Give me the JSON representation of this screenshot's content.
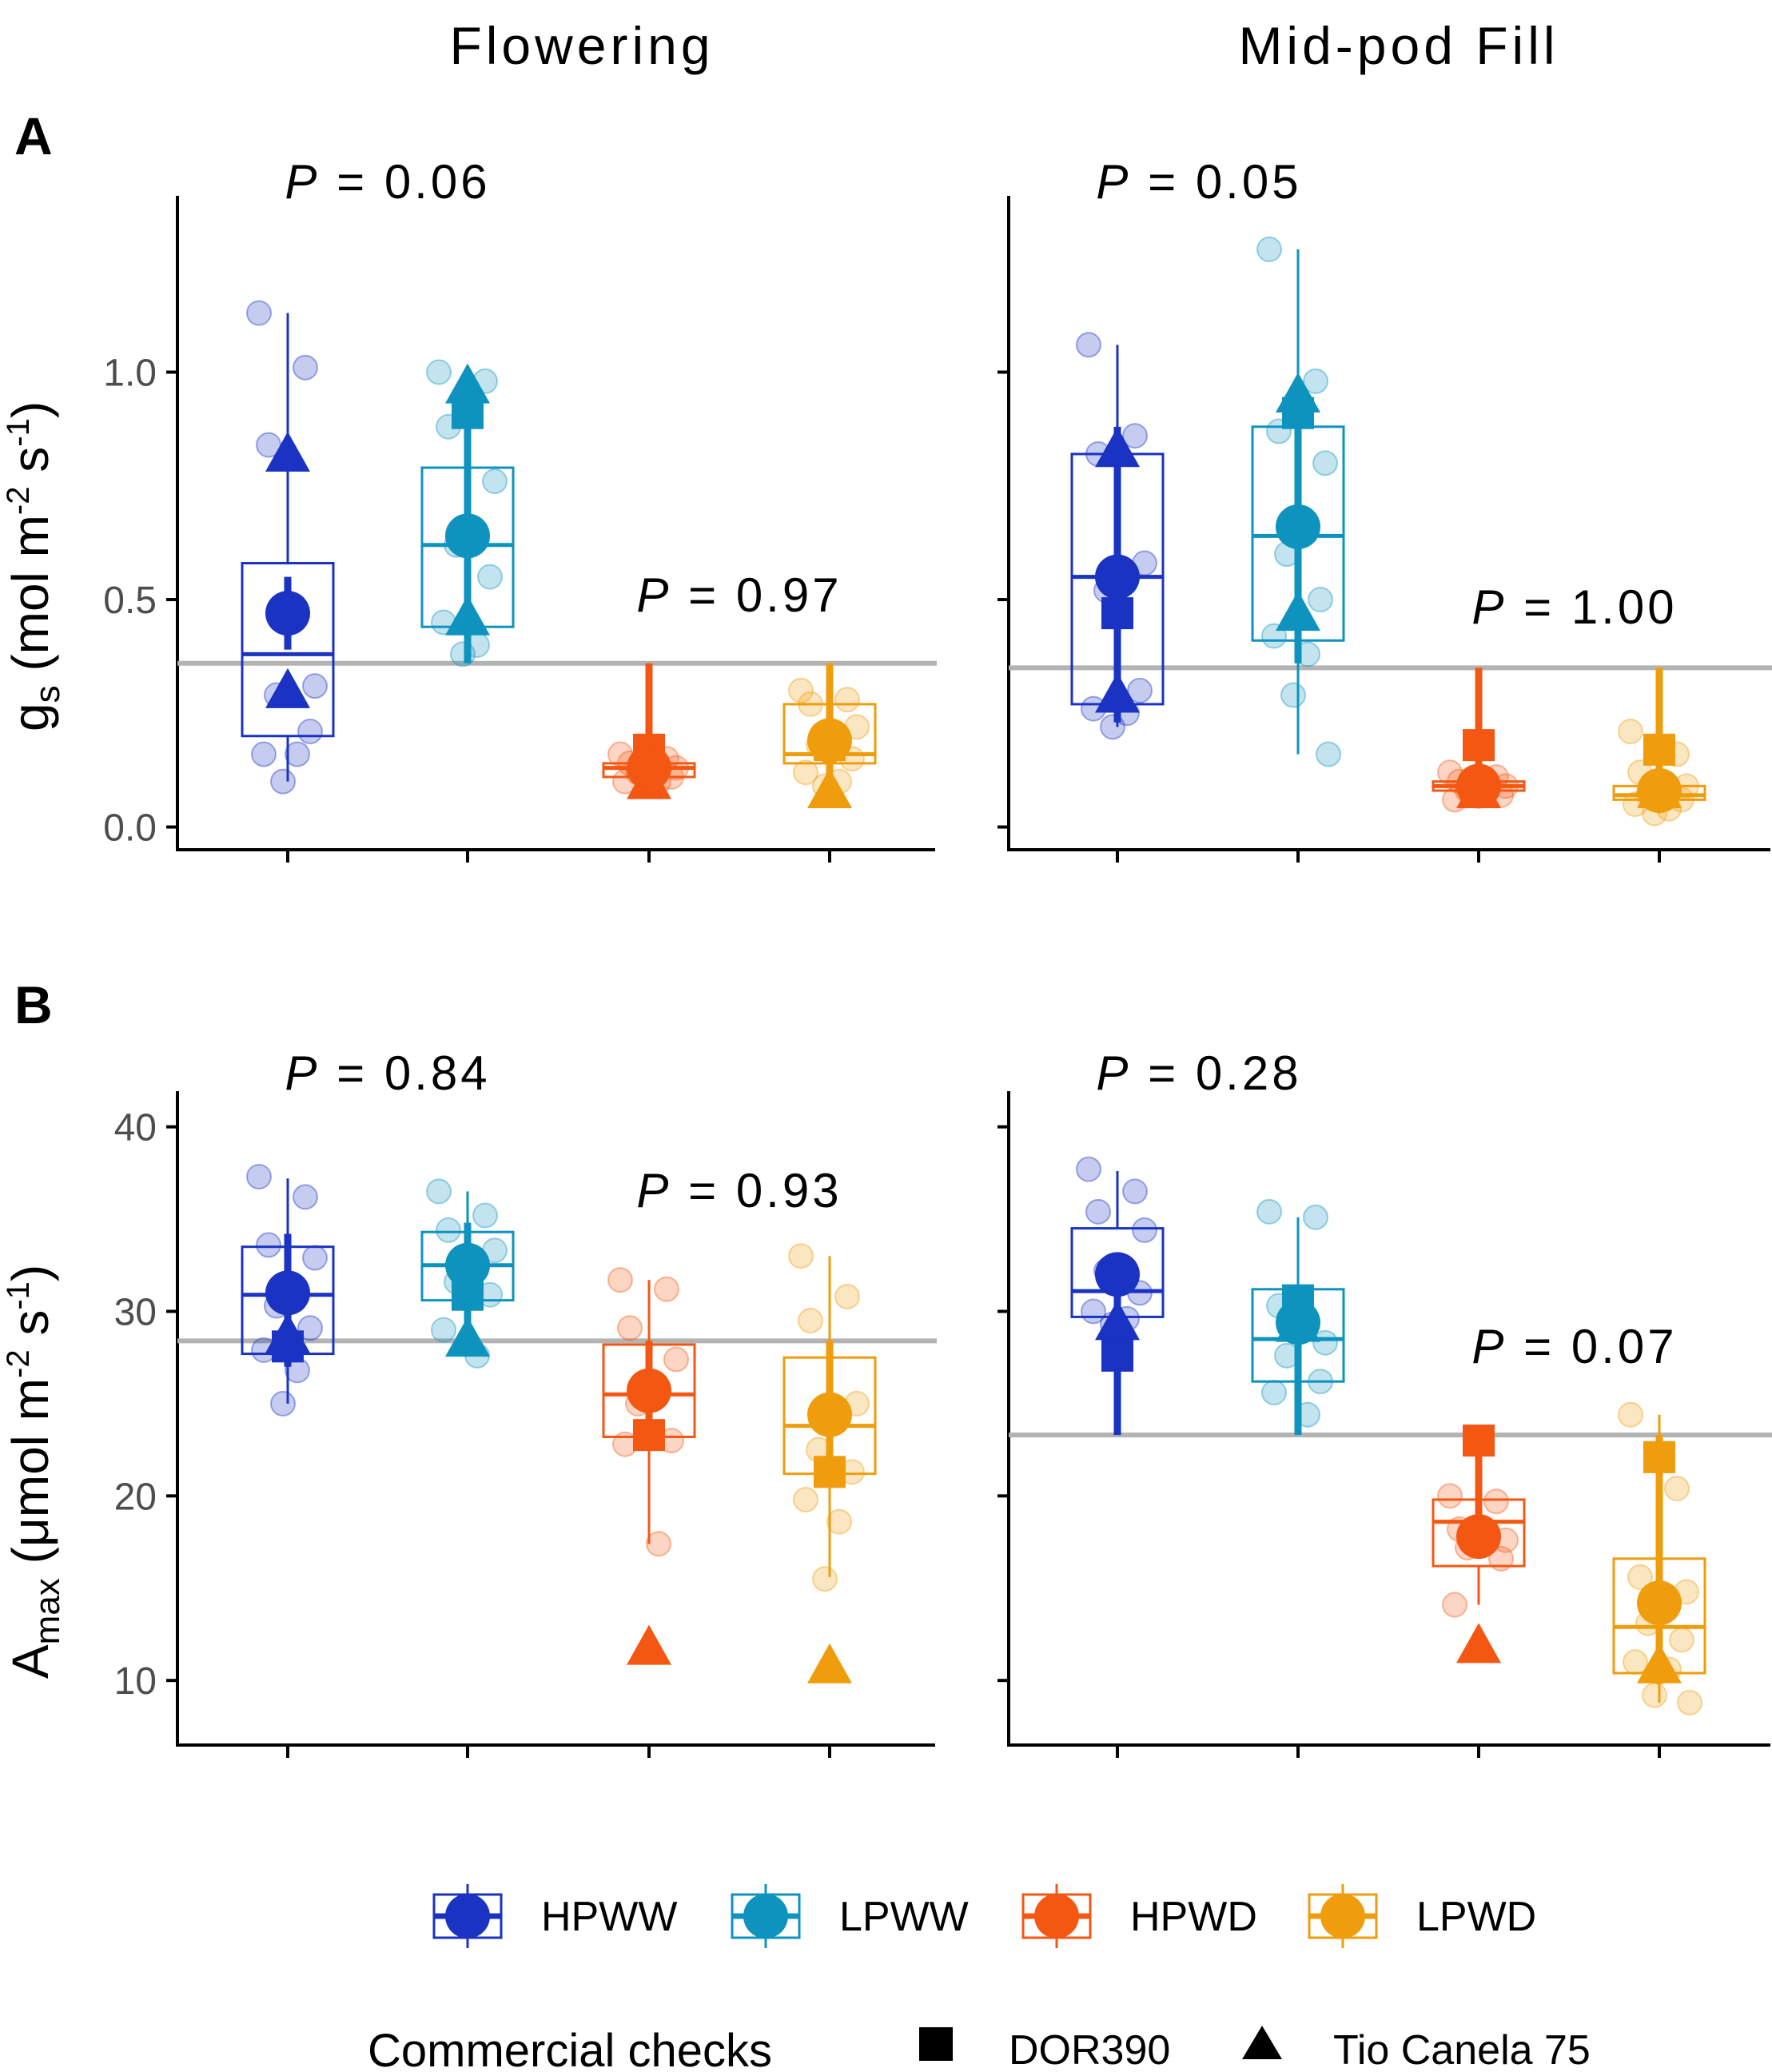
{
  "colors": {
    "HPWW": "#1a33c2",
    "LPWW": "#0e93bf",
    "HPWD": "#f45712",
    "LPWD": "#ef9d0c",
    "refline": "#b3b3b3",
    "axis": "#000000"
  },
  "column_titles": [
    "Flowering",
    "Mid-pod Fill"
  ],
  "chart_data": [
    {
      "type": "box",
      "panel": "A",
      "stage": "Flowering",
      "ylabel": "g_s (mol m^-2 s^-1)",
      "ylabel_main": "g",
      "ylabel_sub": "s",
      "ylabel_rest": " (mol m",
      "ylabel_exp1": "-2",
      "ylabel_mid": " s",
      "ylabel_exp2": "-1",
      "ylabel_end": ")",
      "ylim": [
        -0.05,
        1.37
      ],
      "yticks": [
        0.0,
        0.5,
        1.0
      ],
      "ytick_labels": [
        "0.0",
        "0.5",
        "1.0"
      ],
      "reference_line": 0.36,
      "pvalues": [
        {
          "prefix": "P",
          "text": " = 0.06",
          "group": "well-watered"
        },
        {
          "prefix": "P",
          "text": " = 0.97",
          "group": "water-deficit"
        }
      ],
      "groups": [
        {
          "treatment": "HPWW",
          "box": {
            "q1": 0.2,
            "median": 0.38,
            "q3": 0.58,
            "whisker_low": 0.1,
            "whisker_high": 1.13
          },
          "mean": 0.47,
          "mean_err": [
            0.39,
            0.55
          ],
          "points": [
            1.13,
            1.01,
            0.84,
            0.31,
            0.29,
            0.21,
            0.16,
            0.16,
            0.1
          ],
          "dor390": 0.47,
          "tio_canela": 0.82,
          "tio_canela_2": 0.3
        },
        {
          "treatment": "LPWW",
          "box": {
            "q1": 0.44,
            "median": 0.62,
            "q3": 0.79,
            "whisker_low": 0.38,
            "whisker_high": 1.0
          },
          "mean": 0.64,
          "mean_err": [
            0.36,
            0.92
          ],
          "points": [
            1.0,
            0.98,
            0.88,
            0.76,
            0.62,
            0.55,
            0.45,
            0.4,
            0.38
          ],
          "dor390": 0.91,
          "tio_canela": 0.97,
          "tio_canela_2": 0.46
        },
        {
          "treatment": "HPWD",
          "box": {
            "q1": 0.11,
            "median": 0.13,
            "q3": 0.14,
            "whisker_low": 0.09,
            "whisker_high": 0.16
          },
          "mean": 0.13,
          "mean_err": [
            0.09,
            0.36
          ],
          "points": [
            0.16,
            0.15,
            0.14,
            0.13,
            0.12,
            0.11,
            0.1,
            0.1
          ],
          "dor390": 0.17,
          "tio_canela": 0.1
        },
        {
          "treatment": "LPWD",
          "box": {
            "q1": 0.14,
            "median": 0.16,
            "q3": 0.27,
            "whisker_low": 0.09,
            "whisker_high": 0.3
          },
          "mean": 0.19,
          "mean_err": [
            0.09,
            0.36
          ],
          "points": [
            0.3,
            0.28,
            0.27,
            0.22,
            0.18,
            0.15,
            0.12,
            0.1,
            0.09
          ],
          "dor390": 0.18,
          "tio_canela": 0.08
        }
      ]
    },
    {
      "type": "box",
      "panel": "A",
      "stage": "Mid-pod Fill",
      "ylim": [
        -0.05,
        1.37
      ],
      "reference_line": 0.35,
      "pvalues": [
        {
          "prefix": "P",
          "text": " = 0.05",
          "group": "well-watered"
        },
        {
          "prefix": "P",
          "text": " = 1.00",
          "group": "water-deficit"
        }
      ],
      "groups": [
        {
          "treatment": "HPWW",
          "box": {
            "q1": 0.27,
            "median": 0.55,
            "q3": 0.82,
            "whisker_low": 0.22,
            "whisker_high": 1.06
          },
          "mean": 0.55,
          "mean_err": [
            0.23,
            0.88
          ],
          "points": [
            1.06,
            0.86,
            0.82,
            0.58,
            0.52,
            0.3,
            0.26,
            0.25,
            0.22
          ],
          "dor390": 0.47,
          "tio_canela": 0.83,
          "tio_canela_2": 0.29
        },
        {
          "treatment": "LPWW",
          "box": {
            "q1": 0.41,
            "median": 0.64,
            "q3": 0.88,
            "whisker_low": 0.16,
            "whisker_high": 1.27
          },
          "mean": 0.66,
          "mean_err": [
            0.36,
            0.96
          ],
          "points": [
            1.27,
            0.98,
            0.87,
            0.8,
            0.6,
            0.5,
            0.42,
            0.38,
            0.29,
            0.16
          ],
          "dor390": 0.91,
          "tio_canela": 0.95,
          "tio_canela_2": 0.47
        },
        {
          "treatment": "HPWD",
          "box": {
            "q1": 0.08,
            "median": 0.09,
            "q3": 0.1,
            "whisker_low": 0.06,
            "whisker_high": 0.12
          },
          "mean": 0.09,
          "mean_err": [
            0.06,
            0.35
          ],
          "points": [
            0.12,
            0.11,
            0.1,
            0.09,
            0.08,
            0.07,
            0.06
          ],
          "dor390": 0.18,
          "tio_canela": 0.08
        },
        {
          "treatment": "LPWD",
          "box": {
            "q1": 0.06,
            "median": 0.07,
            "q3": 0.09,
            "whisker_low": 0.03,
            "whisker_high": 0.21
          },
          "mean": 0.08,
          "mean_err": [
            0.05,
            0.35
          ],
          "points": [
            0.21,
            0.16,
            0.12,
            0.09,
            0.07,
            0.06,
            0.05,
            0.04,
            0.03
          ],
          "dor390": 0.17,
          "tio_canela": 0.08
        }
      ]
    },
    {
      "type": "box",
      "panel": "B",
      "stage": "Flowering",
      "ylabel": "A_max (umol m^-2 s^-1)",
      "ylabel_main": "A",
      "ylabel_sub": "max",
      "ylabel_rest": " (μmol m",
      "ylabel_exp1": "-2",
      "ylabel_mid": " s",
      "ylabel_exp2": "-1",
      "ylabel_end": ")",
      "ylim": [
        6.5,
        41.5
      ],
      "yticks": [
        10,
        20,
        30,
        40
      ],
      "ytick_labels": [
        "10",
        "20",
        "30",
        "40"
      ],
      "reference_line": 28.4,
      "pvalues": [
        {
          "prefix": "P",
          "text": " = 0.84",
          "group": "well-watered"
        },
        {
          "prefix": "P",
          "text": " = 0.93",
          "group": "water-deficit"
        }
      ],
      "groups": [
        {
          "treatment": "HPWW",
          "box": {
            "q1": 27.7,
            "median": 30.9,
            "q3": 33.5,
            "whisker_low": 25.0,
            "whisker_high": 37.2
          },
          "mean": 31.0,
          "mean_err": [
            27.0,
            34.2
          ],
          "points": [
            37.3,
            36.2,
            33.6,
            32.9,
            30.3,
            29.1,
            27.9,
            26.8,
            25.0
          ],
          "dor390": 28.1,
          "tio_canela": 28.7
        },
        {
          "treatment": "LPWW",
          "box": {
            "q1": 30.6,
            "median": 32.5,
            "q3": 34.3,
            "whisker_low": 27.6,
            "whisker_high": 36.5
          },
          "mean": 32.5,
          "mean_err": [
            28.8,
            34.8
          ],
          "points": [
            36.5,
            35.2,
            34.4,
            33.3,
            31.6,
            30.9,
            29.0,
            27.6
          ],
          "dor390": 30.9,
          "tio_canela": 28.5
        },
        {
          "treatment": "HPWD",
          "box": {
            "q1": 23.2,
            "median": 25.5,
            "q3": 28.2,
            "whisker_low": 17.4,
            "whisker_high": 31.7
          },
          "mean": 25.7,
          "mean_err": [
            23.4,
            28.4
          ],
          "points": [
            31.7,
            31.2,
            29.1,
            27.4,
            25.0,
            23.0,
            22.8,
            17.4
          ],
          "dor390": 23.3,
          "tio_canela": 11.8
        },
        {
          "treatment": "LPWD",
          "box": {
            "q1": 21.2,
            "median": 23.8,
            "q3": 27.5,
            "whisker_low": 15.6,
            "whisker_high": 33.0
          },
          "mean": 24.4,
          "mean_err": [
            21.5,
            28.4
          ],
          "points": [
            33.0,
            30.8,
            29.5,
            25.0,
            22.5,
            21.3,
            19.8,
            18.6,
            15.5
          ],
          "dor390": 21.3,
          "tio_canela": 10.8
        }
      ]
    },
    {
      "type": "box",
      "panel": "B",
      "stage": "Mid-pod Fill",
      "ylim": [
        6.5,
        41.5
      ],
      "reference_line": 23.3,
      "pvalues": [
        {
          "prefix": "P",
          "text": " = 0.28",
          "group": "well-watered"
        },
        {
          "prefix": "P",
          "text": " = 0.07",
          "group": "water-deficit"
        }
      ],
      "groups": [
        {
          "treatment": "HPWW",
          "box": {
            "q1": 29.7,
            "median": 31.1,
            "q3": 34.5,
            "whisker_low": 28.5,
            "whisker_high": 37.6
          },
          "mean": 32.0,
          "mean_err": [
            23.3,
            32.0
          ],
          "points": [
            37.7,
            36.5,
            35.4,
            34.4,
            32.2,
            31.0,
            30.0,
            29.6,
            29.3
          ],
          "dor390": 27.6,
          "tio_canela": 29.4
        },
        {
          "treatment": "LPWW",
          "box": {
            "q1": 26.2,
            "median": 28.5,
            "q3": 31.2,
            "whisker_low": 24.3,
            "whisker_high": 35.1
          },
          "mean": 29.4,
          "mean_err": [
            23.3,
            31.0
          ],
          "points": [
            35.4,
            35.1,
            30.3,
            28.3,
            27.6,
            26.2,
            25.6,
            24.4
          ],
          "dor390": 30.6,
          "tio_canela": 29.3
        },
        {
          "treatment": "HPWD",
          "box": {
            "q1": 16.2,
            "median": 18.6,
            "q3": 19.8,
            "whisker_low": 14.1,
            "whisker_high": 23.3
          },
          "mean": 17.8,
          "mean_err": [
            17.8,
            23.3
          ],
          "points": [
            20.0,
            19.7,
            18.2,
            17.6,
            17.2,
            16.6,
            14.1
          ],
          "dor390": 23.0,
          "tio_canela": 11.9
        },
        {
          "treatment": "LPWD",
          "box": {
            "q1": 10.4,
            "median": 12.9,
            "q3": 16.6,
            "whisker_low": 8.8,
            "whisker_high": 24.4
          },
          "mean": 14.2,
          "mean_err": [
            9.8,
            23.3
          ],
          "points": [
            24.4,
            20.4,
            15.6,
            14.8,
            13.1,
            12.2,
            11.0,
            10.6,
            9.2,
            8.8
          ],
          "dor390": 22.1,
          "tio_canela": 10.8
        }
      ]
    }
  ],
  "legend": {
    "treatments": [
      "HPWW",
      "LPWW",
      "HPWD",
      "LPWD"
    ],
    "checks_title": "Commercial checks",
    "checks": [
      {
        "shape": "square",
        "label": "DOR390"
      },
      {
        "shape": "triangle",
        "label": "Tio Canela 75"
      }
    ]
  }
}
